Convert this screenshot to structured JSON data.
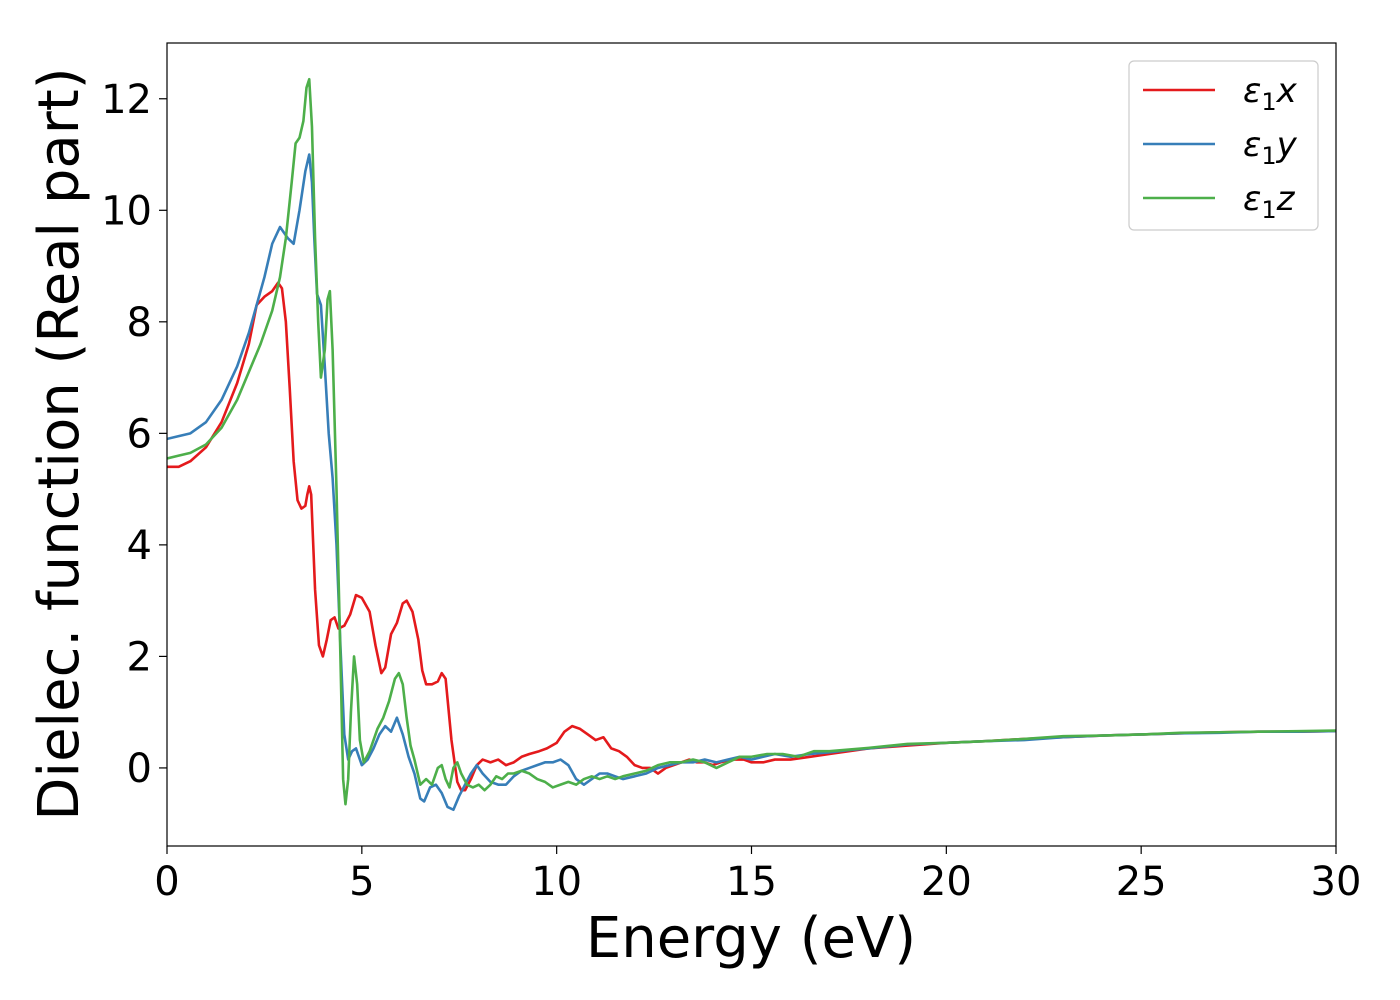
{
  "chart_data": {
    "type": "line",
    "title": "",
    "xlabel": "Energy (eV)",
    "ylabel": "Dielec. function (Real part)",
    "xlim": [
      0,
      30
    ],
    "ylim": [
      -1.4,
      13.0
    ],
    "xticks": [
      0,
      5,
      10,
      15,
      20,
      25,
      30
    ],
    "yticks": [
      0,
      2,
      4,
      6,
      8,
      10,
      12
    ],
    "grid": false,
    "legend_position": "top-right",
    "series": [
      {
        "name_main": "ε",
        "name_sub": "1",
        "name_suffix": "x",
        "color": "#e41a1c",
        "points": [
          [
            0,
            5.4
          ],
          [
            0.3,
            5.4
          ],
          [
            0.6,
            5.5
          ],
          [
            1.0,
            5.75
          ],
          [
            1.4,
            6.2
          ],
          [
            1.8,
            6.9
          ],
          [
            2.1,
            7.6
          ],
          [
            2.3,
            8.3
          ],
          [
            2.5,
            8.45
          ],
          [
            2.7,
            8.55
          ],
          [
            2.85,
            8.7
          ],
          [
            2.95,
            8.6
          ],
          [
            3.05,
            8.0
          ],
          [
            3.15,
            6.8
          ],
          [
            3.25,
            5.5
          ],
          [
            3.35,
            4.8
          ],
          [
            3.45,
            4.65
          ],
          [
            3.55,
            4.7
          ],
          [
            3.6,
            4.9
          ],
          [
            3.65,
            5.05
          ],
          [
            3.7,
            4.9
          ],
          [
            3.8,
            3.2
          ],
          [
            3.9,
            2.2
          ],
          [
            4.0,
            2.0
          ],
          [
            4.1,
            2.3
          ],
          [
            4.2,
            2.65
          ],
          [
            4.3,
            2.7
          ],
          [
            4.4,
            2.5
          ],
          [
            4.55,
            2.55
          ],
          [
            4.7,
            2.75
          ],
          [
            4.85,
            3.1
          ],
          [
            5.0,
            3.05
          ],
          [
            5.2,
            2.8
          ],
          [
            5.35,
            2.2
          ],
          [
            5.5,
            1.7
          ],
          [
            5.6,
            1.8
          ],
          [
            5.75,
            2.4
          ],
          [
            5.9,
            2.6
          ],
          [
            6.05,
            2.95
          ],
          [
            6.15,
            3.0
          ],
          [
            6.3,
            2.8
          ],
          [
            6.45,
            2.3
          ],
          [
            6.55,
            1.75
          ],
          [
            6.65,
            1.5
          ],
          [
            6.8,
            1.5
          ],
          [
            6.95,
            1.55
          ],
          [
            7.05,
            1.7
          ],
          [
            7.15,
            1.6
          ],
          [
            7.3,
            0.5
          ],
          [
            7.45,
            -0.25
          ],
          [
            7.55,
            -0.4
          ],
          [
            7.65,
            -0.4
          ],
          [
            7.8,
            -0.2
          ],
          [
            7.95,
            0.05
          ],
          [
            8.1,
            0.15
          ],
          [
            8.3,
            0.1
          ],
          [
            8.5,
            0.15
          ],
          [
            8.7,
            0.05
          ],
          [
            8.9,
            0.1
          ],
          [
            9.1,
            0.2
          ],
          [
            9.3,
            0.25
          ],
          [
            9.55,
            0.3
          ],
          [
            9.75,
            0.35
          ],
          [
            10.0,
            0.45
          ],
          [
            10.2,
            0.65
          ],
          [
            10.4,
            0.75
          ],
          [
            10.6,
            0.7
          ],
          [
            10.8,
            0.6
          ],
          [
            11.0,
            0.5
          ],
          [
            11.2,
            0.55
          ],
          [
            11.4,
            0.35
          ],
          [
            11.6,
            0.3
          ],
          [
            11.8,
            0.2
          ],
          [
            12.0,
            0.05
          ],
          [
            12.2,
            0.0
          ],
          [
            12.4,
            0.0
          ],
          [
            12.6,
            -0.1
          ],
          [
            12.8,
            0.0
          ],
          [
            13.0,
            0.05
          ],
          [
            13.2,
            0.1
          ],
          [
            13.4,
            0.15
          ],
          [
            13.6,
            0.1
          ],
          [
            13.8,
            0.1
          ],
          [
            14.0,
            0.05
          ],
          [
            14.2,
            0.1
          ],
          [
            14.5,
            0.15
          ],
          [
            14.8,
            0.15
          ],
          [
            15.0,
            0.1
          ],
          [
            15.3,
            0.1
          ],
          [
            15.6,
            0.15
          ],
          [
            16.0,
            0.15
          ],
          [
            16.5,
            0.2
          ],
          [
            17.0,
            0.25
          ],
          [
            17.5,
            0.3
          ],
          [
            18.0,
            0.35
          ],
          [
            19.0,
            0.4
          ],
          [
            20.0,
            0.45
          ],
          [
            21.0,
            0.48
          ],
          [
            22.0,
            0.52
          ],
          [
            23.0,
            0.55
          ],
          [
            24.0,
            0.58
          ],
          [
            25.0,
            0.6
          ],
          [
            26.0,
            0.62
          ],
          [
            27.0,
            0.64
          ],
          [
            28.0,
            0.65
          ],
          [
            29.0,
            0.65
          ],
          [
            30.0,
            0.66
          ]
        ]
      },
      {
        "name_main": "ε",
        "name_sub": "1",
        "name_suffix": "y",
        "color": "#377eb8",
        "points": [
          [
            0,
            5.9
          ],
          [
            0.3,
            5.95
          ],
          [
            0.6,
            6.0
          ],
          [
            1.0,
            6.2
          ],
          [
            1.4,
            6.6
          ],
          [
            1.8,
            7.2
          ],
          [
            2.1,
            7.8
          ],
          [
            2.3,
            8.3
          ],
          [
            2.5,
            8.8
          ],
          [
            2.7,
            9.4
          ],
          [
            2.9,
            9.7
          ],
          [
            3.1,
            9.5
          ],
          [
            3.25,
            9.4
          ],
          [
            3.4,
            10.0
          ],
          [
            3.55,
            10.7
          ],
          [
            3.65,
            11.0
          ],
          [
            3.72,
            10.5
          ],
          [
            3.78,
            9.5
          ],
          [
            3.85,
            8.5
          ],
          [
            3.95,
            8.3
          ],
          [
            4.05,
            7.2
          ],
          [
            4.15,
            6.0
          ],
          [
            4.25,
            5.2
          ],
          [
            4.35,
            4.0
          ],
          [
            4.45,
            2.2
          ],
          [
            4.55,
            0.6
          ],
          [
            4.65,
            0.15
          ],
          [
            4.75,
            0.3
          ],
          [
            4.85,
            0.35
          ],
          [
            5.0,
            0.05
          ],
          [
            5.15,
            0.15
          ],
          [
            5.3,
            0.35
          ],
          [
            5.45,
            0.6
          ],
          [
            5.6,
            0.75
          ],
          [
            5.75,
            0.65
          ],
          [
            5.9,
            0.9
          ],
          [
            6.05,
            0.6
          ],
          [
            6.2,
            0.2
          ],
          [
            6.35,
            -0.1
          ],
          [
            6.5,
            -0.55
          ],
          [
            6.6,
            -0.6
          ],
          [
            6.75,
            -0.35
          ],
          [
            6.9,
            -0.3
          ],
          [
            7.05,
            -0.45
          ],
          [
            7.2,
            -0.7
          ],
          [
            7.35,
            -0.75
          ],
          [
            7.5,
            -0.5
          ],
          [
            7.65,
            -0.3
          ],
          [
            7.8,
            -0.1
          ],
          [
            7.95,
            0.05
          ],
          [
            8.1,
            -0.1
          ],
          [
            8.3,
            -0.25
          ],
          [
            8.5,
            -0.3
          ],
          [
            8.7,
            -0.3
          ],
          [
            8.9,
            -0.15
          ],
          [
            9.1,
            -0.05
          ],
          [
            9.3,
            0.0
          ],
          [
            9.5,
            0.05
          ],
          [
            9.7,
            0.1
          ],
          [
            9.9,
            0.1
          ],
          [
            10.1,
            0.15
          ],
          [
            10.3,
            0.05
          ],
          [
            10.5,
            -0.2
          ],
          [
            10.7,
            -0.3
          ],
          [
            10.9,
            -0.2
          ],
          [
            11.1,
            -0.1
          ],
          [
            11.3,
            -0.1
          ],
          [
            11.5,
            -0.15
          ],
          [
            11.7,
            -0.2
          ],
          [
            12.0,
            -0.15
          ],
          [
            12.3,
            -0.1
          ],
          [
            12.6,
            0.0
          ],
          [
            12.9,
            0.05
          ],
          [
            13.2,
            0.1
          ],
          [
            13.5,
            0.1
          ],
          [
            13.8,
            0.15
          ],
          [
            14.1,
            0.1
          ],
          [
            14.4,
            0.15
          ],
          [
            14.7,
            0.2
          ],
          [
            15.0,
            0.15
          ],
          [
            15.3,
            0.2
          ],
          [
            15.6,
            0.25
          ],
          [
            16.0,
            0.2
          ],
          [
            16.5,
            0.25
          ],
          [
            17.0,
            0.28
          ],
          [
            17.5,
            0.32
          ],
          [
            18.0,
            0.35
          ],
          [
            19.0,
            0.42
          ],
          [
            20.0,
            0.45
          ],
          [
            21.0,
            0.48
          ],
          [
            22.0,
            0.5
          ],
          [
            23.0,
            0.55
          ],
          [
            24.0,
            0.58
          ],
          [
            25.0,
            0.6
          ],
          [
            26.0,
            0.62
          ],
          [
            27.0,
            0.63
          ],
          [
            28.0,
            0.65
          ],
          [
            29.0,
            0.65
          ],
          [
            30.0,
            0.66
          ]
        ]
      },
      {
        "name_main": "ε",
        "name_sub": "1",
        "name_suffix": "z",
        "color": "#4daf4a",
        "points": [
          [
            0,
            5.55
          ],
          [
            0.3,
            5.6
          ],
          [
            0.6,
            5.65
          ],
          [
            1.0,
            5.8
          ],
          [
            1.4,
            6.1
          ],
          [
            1.8,
            6.6
          ],
          [
            2.1,
            7.1
          ],
          [
            2.4,
            7.6
          ],
          [
            2.7,
            8.2
          ],
          [
            2.9,
            8.8
          ],
          [
            3.05,
            9.5
          ],
          [
            3.2,
            10.5
          ],
          [
            3.3,
            11.2
          ],
          [
            3.4,
            11.3
          ],
          [
            3.5,
            11.6
          ],
          [
            3.58,
            12.2
          ],
          [
            3.65,
            12.35
          ],
          [
            3.72,
            11.5
          ],
          [
            3.8,
            9.5
          ],
          [
            3.88,
            8.0
          ],
          [
            3.95,
            7.0
          ],
          [
            4.05,
            7.5
          ],
          [
            4.12,
            8.4
          ],
          [
            4.18,
            8.55
          ],
          [
            4.25,
            7.5
          ],
          [
            4.35,
            5.0
          ],
          [
            4.45,
            2.0
          ],
          [
            4.52,
            -0.2
          ],
          [
            4.58,
            -0.65
          ],
          [
            4.65,
            -0.2
          ],
          [
            4.72,
            1.0
          ],
          [
            4.8,
            2.0
          ],
          [
            4.88,
            1.5
          ],
          [
            4.95,
            0.5
          ],
          [
            5.05,
            0.1
          ],
          [
            5.2,
            0.3
          ],
          [
            5.4,
            0.7
          ],
          [
            5.55,
            0.9
          ],
          [
            5.7,
            1.2
          ],
          [
            5.85,
            1.6
          ],
          [
            5.95,
            1.7
          ],
          [
            6.05,
            1.5
          ],
          [
            6.15,
            0.9
          ],
          [
            6.25,
            0.4
          ],
          [
            6.35,
            0.15
          ],
          [
            6.5,
            -0.3
          ],
          [
            6.65,
            -0.2
          ],
          [
            6.8,
            -0.3
          ],
          [
            6.95,
            0.0
          ],
          [
            7.05,
            0.05
          ],
          [
            7.15,
            -0.2
          ],
          [
            7.25,
            -0.35
          ],
          [
            7.35,
            0.0
          ],
          [
            7.45,
            0.1
          ],
          [
            7.55,
            -0.1
          ],
          [
            7.7,
            -0.3
          ],
          [
            7.85,
            -0.35
          ],
          [
            8.0,
            -0.3
          ],
          [
            8.15,
            -0.4
          ],
          [
            8.3,
            -0.3
          ],
          [
            8.45,
            -0.15
          ],
          [
            8.6,
            -0.2
          ],
          [
            8.75,
            -0.1
          ],
          [
            8.9,
            -0.1
          ],
          [
            9.1,
            -0.05
          ],
          [
            9.3,
            -0.1
          ],
          [
            9.5,
            -0.2
          ],
          [
            9.7,
            -0.25
          ],
          [
            9.9,
            -0.35
          ],
          [
            10.1,
            -0.3
          ],
          [
            10.3,
            -0.25
          ],
          [
            10.5,
            -0.3
          ],
          [
            10.7,
            -0.2
          ],
          [
            10.9,
            -0.15
          ],
          [
            11.1,
            -0.2
          ],
          [
            11.3,
            -0.15
          ],
          [
            11.5,
            -0.2
          ],
          [
            11.7,
            -0.15
          ],
          [
            12.0,
            -0.1
          ],
          [
            12.3,
            -0.05
          ],
          [
            12.6,
            0.05
          ],
          [
            12.9,
            0.1
          ],
          [
            13.2,
            0.1
          ],
          [
            13.5,
            0.15
          ],
          [
            13.8,
            0.1
          ],
          [
            14.1,
            0.0
          ],
          [
            14.4,
            0.1
          ],
          [
            14.7,
            0.2
          ],
          [
            15.0,
            0.2
          ],
          [
            15.4,
            0.25
          ],
          [
            15.8,
            0.25
          ],
          [
            16.2,
            0.2
          ],
          [
            16.6,
            0.3
          ],
          [
            17.0,
            0.3
          ],
          [
            17.5,
            0.33
          ],
          [
            18.0,
            0.36
          ],
          [
            19.0,
            0.43
          ],
          [
            20.0,
            0.45
          ],
          [
            21.0,
            0.48
          ],
          [
            22.0,
            0.52
          ],
          [
            23.0,
            0.57
          ],
          [
            24.0,
            0.58
          ],
          [
            25.0,
            0.6
          ],
          [
            26.0,
            0.63
          ],
          [
            27.0,
            0.64
          ],
          [
            28.0,
            0.65
          ],
          [
            29.0,
            0.66
          ],
          [
            30.0,
            0.67
          ]
        ]
      }
    ]
  }
}
